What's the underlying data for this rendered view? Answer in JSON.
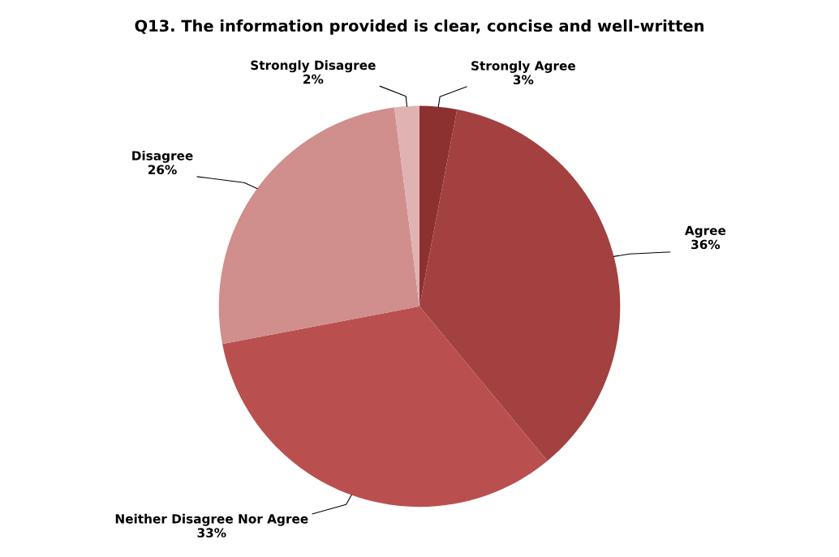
{
  "chart_data": {
    "type": "pie",
    "title": "Q13. The information provided is clear, concise and well-written",
    "categories": [
      "Strongly Agree",
      "Agree",
      "Neither Disagree Nor Agree",
      "Disagree",
      "Strongly Disagree"
    ],
    "values": [
      3,
      36,
      33,
      26,
      2
    ],
    "colors": [
      "#8c3030",
      "#a34140",
      "#b9504f",
      "#d08e8d",
      "#dfb3b2"
    ],
    "value_labels": [
      "3%",
      "36%",
      "33%",
      "26%",
      "2%"
    ],
    "legend": false
  }
}
